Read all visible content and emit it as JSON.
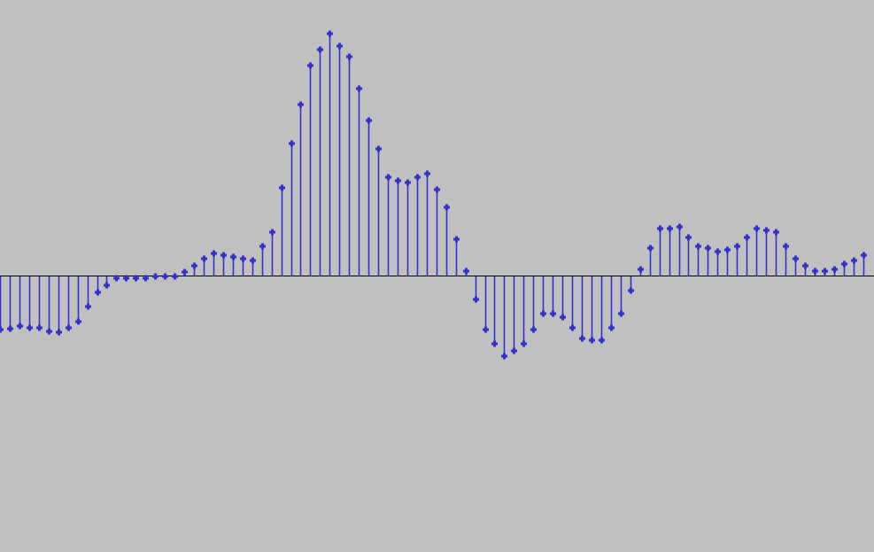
{
  "colors": {
    "background": "#c0c0c0",
    "sample": "#3232c8",
    "baseline": "#000000"
  },
  "view": {
    "amplitude_min": -1.1,
    "amplitude_max": 1.0
  },
  "samples": {
    "first_sample_index": 0,
    "values": [
      -0.224,
      -0.219,
      -0.208,
      -0.216,
      -0.216,
      -0.231,
      -0.234,
      -0.216,
      -0.19,
      -0.128,
      -0.069,
      -0.04,
      -0.011,
      -0.011,
      -0.011,
      -0.011,
      -0.004,
      -0.004,
      -0.004,
      0.015,
      0.04,
      0.07,
      0.092,
      0.084,
      0.077,
      0.07,
      0.062,
      0.121,
      0.179,
      0.363,
      0.546,
      0.707,
      0.868,
      0.934,
      1.0,
      0.949,
      0.905,
      0.773,
      0.641,
      0.524,
      0.407,
      0.392,
      0.385,
      0.407,
      0.421,
      0.355,
      0.282,
      0.15,
      0.018,
      -0.099,
      -0.223,
      -0.282,
      -0.333,
      -0.311,
      -0.282,
      -0.223,
      -0.157,
      -0.157,
      -0.172,
      -0.216,
      -0.26,
      -0.267,
      -0.267,
      -0.216,
      -0.157,
      -0.062,
      0.026,
      0.113,
      0.194,
      0.194,
      0.201,
      0.157,
      0.121,
      0.113,
      0.099,
      0.106,
      0.121,
      0.157,
      0.194,
      0.187,
      0.18,
      0.121,
      0.069,
      0.04,
      0.018,
      0.018,
      0.026,
      0.048,
      0.062,
      0.084
    ]
  }
}
